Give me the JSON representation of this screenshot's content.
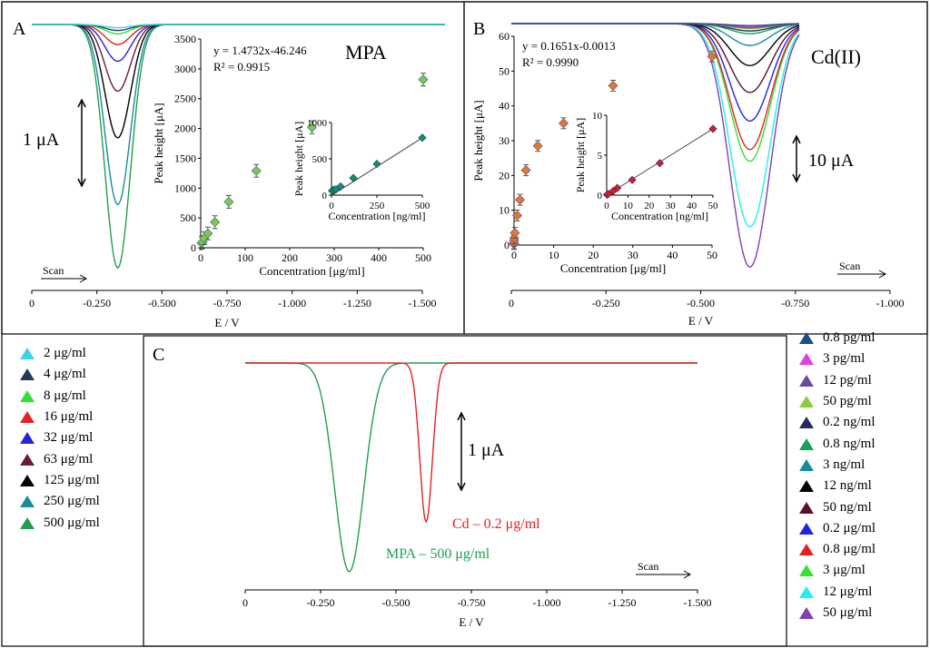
{
  "chart_data": [
    {
      "id": "A",
      "type": "line",
      "panel_label": "A",
      "title": "MPA",
      "xlabel": "E / V",
      "xticks": [
        "0",
        "-0.250",
        "-0.500",
        "-0.750",
        "-1.000",
        "-1.250",
        "-1.500"
      ],
      "xlim": [
        0,
        -1.6
      ],
      "scale_bar": "1 μA",
      "scan_label": "Scan",
      "peak_potential": -0.33,
      "series": [
        {
          "name": "2 μg/ml",
          "color": "#39d4e8",
          "peak": 0.05
        },
        {
          "name": "4 μg/ml",
          "color": "#1f3b5c",
          "peak": 0.09
        },
        {
          "name": "8 μg/ml",
          "color": "#33e033",
          "peak": 0.14
        },
        {
          "name": "16 μg/ml",
          "color": "#e52222",
          "peak": 0.3
        },
        {
          "name": "32 μg/ml",
          "color": "#2222e0",
          "peak": 0.55
        },
        {
          "name": "63 μg/ml",
          "color": "#6a1a3a",
          "peak": 1.0
        },
        {
          "name": "125 μg/ml",
          "color": "#000000",
          "peak": 1.7
        },
        {
          "name": "250 μg/ml",
          "color": "#1a8c99",
          "peak": 2.7
        },
        {
          "name": "500 μg/ml",
          "color": "#1fa050",
          "peak": 3.65
        }
      ],
      "inset": {
        "type": "scatter",
        "xlabel": "Concentration [μg/ml]",
        "ylabel": "Peak height [μA]",
        "xlim": [
          0,
          500
        ],
        "ylim": [
          0,
          3500
        ],
        "xticks": [
          0,
          100,
          200,
          300,
          400,
          500
        ],
        "yticks": [
          0,
          500,
          1000,
          1500,
          2000,
          2500,
          3000,
          3500
        ],
        "equation": "y = 1.4732x-46.246",
        "r2": "R² = 0.9915",
        "points": [
          [
            2,
            80
          ],
          [
            4,
            95
          ],
          [
            8,
            160
          ],
          [
            16,
            240
          ],
          [
            32,
            430
          ],
          [
            63,
            770
          ],
          [
            125,
            1290
          ],
          [
            250,
            2020
          ],
          [
            500,
            2820
          ]
        ],
        "inset": {
          "type": "scatter",
          "xlabel": "Concentration [ng/ml]",
          "ylabel": "Peak height [μA]",
          "xlim": [
            0,
            500
          ],
          "ylim": [
            0,
            1000
          ],
          "xticks": [
            0,
            250,
            500
          ],
          "yticks": [
            0,
            500,
            1000
          ],
          "points": [
            [
              3,
              60
            ],
            [
              12,
              75
            ],
            [
              25,
              80
            ],
            [
              50,
              120
            ],
            [
              120,
              235
            ],
            [
              250,
              430
            ],
            [
              500,
              790
            ]
          ],
          "fit": [
            [
              0,
              -5
            ],
            [
              500,
              790
            ]
          ]
        }
      }
    },
    {
      "id": "B",
      "type": "line",
      "panel_label": "B",
      "title": "Cd(II)",
      "xlabel": "E / V",
      "xticks": [
        "0",
        "-0.250",
        "-0.500",
        "-0.750",
        "-1.000"
      ],
      "xlim": [
        0,
        -1.0
      ],
      "scale_bar": "10 μA",
      "scan_label": "Scan",
      "peak_potential": -0.63,
      "series": [
        {
          "name": "0.8 pg/ml",
          "color": "#1f4e8c",
          "peak": 0.6
        },
        {
          "name": "3 pg/ml",
          "color": "#e040e0",
          "peak": 0.8
        },
        {
          "name": "12 pg/ml",
          "color": "#6a4a9c",
          "peak": 1.2
        },
        {
          "name": "50 pg/ml",
          "color": "#8ccc3c",
          "peak": 1.5
        },
        {
          "name": "0.2 ng/ml",
          "color": "#2a2a5a",
          "peak": 2.2
        },
        {
          "name": "0.8 ng/ml",
          "color": "#18a058",
          "peak": 3.0
        },
        {
          "name": "3 ng/ml",
          "color": "#1a8c99",
          "peak": 6.5
        },
        {
          "name": "12 ng/ml",
          "color": "#000000",
          "peak": 12.5
        },
        {
          "name": "50 ng/ml",
          "color": "#5a1030",
          "peak": 20.5
        },
        {
          "name": "0.2 μg/ml",
          "color": "#2222e0",
          "peak": 29.0
        },
        {
          "name": "0.8 μg/ml",
          "color": "#e52222",
          "peak": 37.5
        },
        {
          "name": "3 μg/ml",
          "color": "#33e033",
          "peak": 41.0
        },
        {
          "name": "12 μg/ml",
          "color": "#22f0f0",
          "peak": 60.5
        },
        {
          "name": "50 μg/ml",
          "color": "#8040b0",
          "peak": 72.5
        }
      ],
      "inset": {
        "type": "scatter",
        "xlabel": "Concentration [μg/ml]",
        "ylabel": "Peak height [μA]",
        "xlim": [
          0,
          50
        ],
        "ylim": [
          0,
          60
        ],
        "xticks": [
          0,
          10,
          20,
          30,
          40,
          50
        ],
        "yticks": [
          0,
          10,
          20,
          30,
          40,
          50,
          60
        ],
        "equation": "y = 0.1651x-0.0013",
        "r2": "R² = 0.9990",
        "points": [
          [
            0.0008,
            0.3
          ],
          [
            0.003,
            0.5
          ],
          [
            0.012,
            1.2
          ],
          [
            0.05,
            2.0
          ],
          [
            0.2,
            3.5
          ],
          [
            0.8,
            8.5
          ],
          [
            1.5,
            13.0
          ],
          [
            3,
            21.5
          ],
          [
            6,
            28.5
          ],
          [
            12.5,
            35.0
          ],
          [
            25,
            45.8
          ],
          [
            50,
            54.2
          ]
        ],
        "inset": {
          "type": "scatter",
          "xlabel": "Concentration [ng/ml]",
          "ylabel": "Peak height [μA]",
          "xlim": [
            0,
            50
          ],
          "ylim": [
            0,
            10
          ],
          "xticks": [
            0,
            10,
            20,
            30,
            40,
            50
          ],
          "yticks": [
            0,
            5,
            10
          ],
          "points": [
            [
              0.2,
              0.05
            ],
            [
              0.8,
              0.15
            ],
            [
              3,
              0.5
            ],
            [
              5,
              0.9
            ],
            [
              12,
              1.9
            ],
            [
              25,
              4.0
            ],
            [
              50,
              8.3
            ]
          ],
          "fit": [
            [
              0,
              0
            ],
            [
              50,
              8.3
            ]
          ]
        }
      }
    },
    {
      "id": "C",
      "type": "line",
      "panel_label": "C",
      "xlabel": "E / V",
      "xticks": [
        "0",
        "-0.250",
        "-0.500",
        "-0.750",
        "-1.000",
        "-1.250",
        "-1.500"
      ],
      "xlim": [
        0,
        -1.5
      ],
      "scale_bar": "1 μA",
      "scan_label": "Scan",
      "series": [
        {
          "name": "Cd – 0.2 μg/ml",
          "color": "#e52222",
          "peak_potential": -0.6,
          "peak": 1.75
        },
        {
          "name": "MPA – 500 μg/ml",
          "color": "#1fa050",
          "peak_potential": -0.345,
          "peak": 2.3
        }
      ]
    }
  ]
}
